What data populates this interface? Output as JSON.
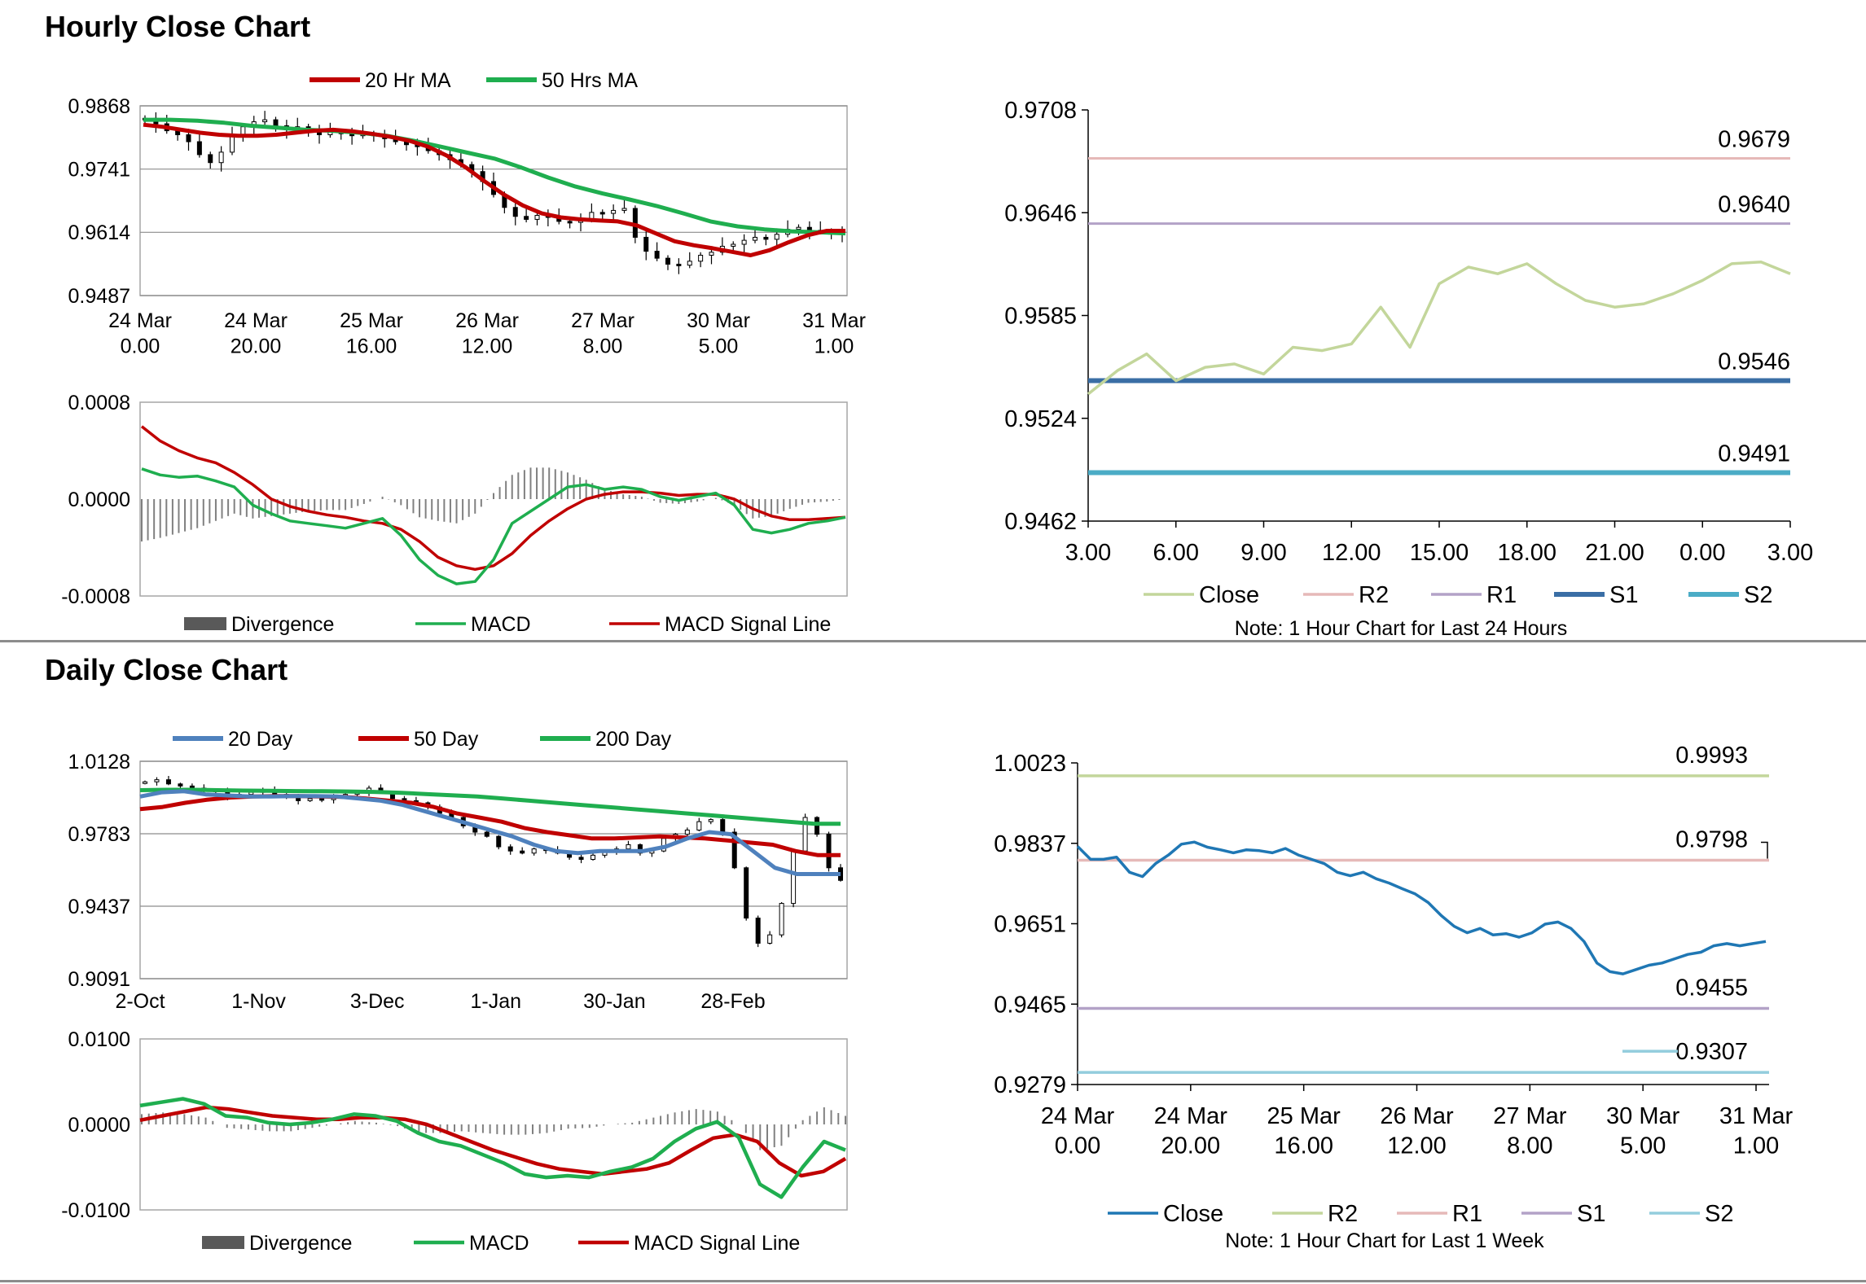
{
  "sections": {
    "hourly_title": "Hourly Close Chart",
    "daily_title": "Daily Close Chart"
  },
  "colors": {
    "ma20": "#c00000",
    "ma50": "#1fae4f",
    "macd": "#1fae4f",
    "signal": "#c00000",
    "divergence": "#808080",
    "day20": "#4f81bd",
    "day50": "#c00000",
    "day200": "#1fae4f",
    "close_green": "#c3d69b",
    "r2_pink": "#e6b9b8",
    "r1_purple": "#b3a2c7",
    "s1_blue": "#3a6ea5",
    "s2_teal": "#4bacc6",
    "close_blue": "#1f77b4",
    "r2_green": "#c3d69b",
    "s2_lightblue": "#93cddd"
  },
  "chart_data": [
    {
      "id": "hourly_price",
      "type": "line",
      "title": "Hourly Close Chart",
      "legend": [
        "20 Hr MA",
        "50 Hrs MA"
      ],
      "legend_placement": "top-center",
      "y_ticks": [
        "0.9868",
        "0.9741",
        "0.9614",
        "0.9487"
      ],
      "ylim": [
        0.9487,
        0.9868
      ],
      "x_ticks": [
        [
          "24 Mar",
          "0.00"
        ],
        [
          "24 Mar",
          "20.00"
        ],
        [
          "25 Mar",
          "16.00"
        ],
        [
          "26 Mar",
          "12.00"
        ],
        [
          "27 Mar",
          "8.00"
        ],
        [
          "30 Mar",
          "5.00"
        ],
        [
          "31 Mar",
          "1.00"
        ]
      ],
      "close": [
        0.9843,
        0.9832,
        0.9818,
        0.981,
        0.9796,
        0.977,
        0.9754,
        0.9775,
        0.9808,
        0.9826,
        0.9836,
        0.984,
        0.9828,
        0.982,
        0.9826,
        0.9818,
        0.981,
        0.9816,
        0.9812,
        0.9808,
        0.9812,
        0.9808,
        0.9802,
        0.9796,
        0.979,
        0.9786,
        0.9778,
        0.977,
        0.976,
        0.975,
        0.9736,
        0.9716,
        0.969,
        0.9664,
        0.9646,
        0.964,
        0.9648,
        0.9644,
        0.9636,
        0.9634,
        0.964,
        0.9654,
        0.9652,
        0.9658,
        0.9662,
        0.9604,
        0.9576,
        0.9562,
        0.955,
        0.9548,
        0.9556,
        0.9568,
        0.9574,
        0.9586,
        0.959,
        0.9598,
        0.9604,
        0.96,
        0.961,
        0.962,
        0.9624,
        0.9618,
        0.9616,
        0.9612,
        0.9614
      ],
      "series": [
        {
          "name": "20 Hr MA",
          "values": [
            0.983,
            0.9826,
            0.982,
            0.9814,
            0.981,
            0.9808,
            0.9808,
            0.981,
            0.9814,
            0.9818,
            0.982,
            0.9817,
            0.9812,
            0.9806,
            0.9798,
            0.9786,
            0.9768,
            0.9744,
            0.9716,
            0.969,
            0.9668,
            0.9652,
            0.9644,
            0.964,
            0.9638,
            0.9636,
            0.9628,
            0.9612,
            0.9596,
            0.9588,
            0.9582,
            0.9575,
            0.9568,
            0.9578,
            0.9594,
            0.9608,
            0.9617,
            0.9617
          ]
        },
        {
          "name": "50 Hrs MA",
          "values": [
            0.984,
            0.984,
            0.9838,
            0.9834,
            0.9828,
            0.9824,
            0.982,
            0.9818,
            0.9814,
            0.9808,
            0.9798,
            0.9786,
            0.9774,
            0.9762,
            0.9744,
            0.9724,
            0.9706,
            0.9692,
            0.968,
            0.9667,
            0.9652,
            0.9636,
            0.9626,
            0.962,
            0.9616,
            0.9614,
            0.9612
          ]
        }
      ]
    },
    {
      "id": "hourly_macd",
      "type": "line",
      "y_ticks": [
        "0.0008",
        "0.0000",
        "-0.0008"
      ],
      "ylim": [
        -0.0008,
        0.0008
      ],
      "legend": [
        "Divergence",
        "MACD",
        "MACD Signal Line"
      ],
      "legend_placement": "bottom",
      "series": [
        {
          "name": "MACD",
          "values": [
            0.00025,
            0.0002,
            0.00018,
            0.00019,
            0.00015,
            0.0001,
            -5e-05,
            -0.00012,
            -0.00018,
            -0.0002,
            -0.00022,
            -0.00024,
            -0.0002,
            -0.00016,
            -0.0003,
            -0.0005,
            -0.00063,
            -0.0007,
            -0.00068,
            -0.0005,
            -0.0002,
            -0.0001,
            0.0,
            0.0001,
            0.00012,
            8e-05,
            0.0001,
            8e-05,
            2e-05,
            -1e-05,
            2e-05,
            5e-05,
            -5e-05,
            -0.00025,
            -0.00028,
            -0.00025,
            -0.0002,
            -0.00018,
            -0.00015
          ]
        },
        {
          "name": "MACD Signal Line",
          "values": [
            0.0006,
            0.00048,
            0.0004,
            0.00034,
            0.0003,
            0.00022,
            0.00012,
            0.0,
            -6e-05,
            -0.0001,
            -0.00013,
            -0.00015,
            -0.00018,
            -0.0002,
            -0.00025,
            -0.00035,
            -0.00048,
            -0.00055,
            -0.00058,
            -0.00055,
            -0.00045,
            -0.0003,
            -0.00018,
            -8e-05,
            0.0,
            4e-05,
            6e-05,
            6e-05,
            5e-05,
            3e-05,
            4e-05,
            4e-05,
            0.0,
            -8e-05,
            -0.00014,
            -0.00017,
            -0.00017,
            -0.00016,
            -0.00015
          ]
        },
        {
          "name": "Divergence",
          "values": [
            -0.00035,
            -0.00032,
            -0.00028,
            -0.00024,
            -0.00018,
            -0.00012,
            -0.00016,
            -0.00014,
            -0.00012,
            -0.0001,
            -9e-05,
            -9e-05,
            -4e-05,
            2e-05,
            -5e-05,
            -0.00015,
            -0.00018,
            -0.0002,
            -0.00012,
            5e-05,
            0.0002,
            0.00026,
            0.00026,
            0.00022,
            0.00016,
            8e-05,
            4e-05,
            2e-05,
            -3e-05,
            -4e-05,
            -2e-05,
            1e-05,
            -5e-05,
            -0.00016,
            -0.00014,
            -8e-05,
            -3e-05,
            -2e-05,
            0.0
          ]
        }
      ]
    },
    {
      "id": "hourly_pivots",
      "type": "line",
      "note": "Note: 1 Hour Chart for Last 24 Hours",
      "y_ticks": [
        "0.9708",
        "0.9646",
        "0.9585",
        "0.9524",
        "0.9462"
      ],
      "ylim": [
        0.9462,
        0.9708
      ],
      "x_ticks": [
        "3.00",
        "6.00",
        "9.00",
        "12.00",
        "15.00",
        "18.00",
        "21.00",
        "0.00",
        "3.00"
      ],
      "legend": [
        "Close",
        "R2",
        "R1",
        "S1",
        "S2"
      ],
      "legend_placement": "bottom",
      "close": [
        0.9538,
        0.9552,
        0.9562,
        0.9546,
        0.9554,
        0.9556,
        0.955,
        0.9566,
        0.9564,
        0.9568,
        0.959,
        0.9566,
        0.9604,
        0.9614,
        0.961,
        0.9616,
        0.9604,
        0.9594,
        0.959,
        0.9592,
        0.9598,
        0.9606,
        0.9616,
        0.9617,
        0.961
      ],
      "levels": [
        {
          "name": "R2",
          "value": 0.9679,
          "label": "0.9679"
        },
        {
          "name": "R1",
          "value": 0.964,
          "label": "0.9640"
        },
        {
          "name": "S1",
          "value": 0.9546,
          "label": "0.9546"
        },
        {
          "name": "S2",
          "value": 0.9491,
          "label": "0.9491"
        }
      ]
    },
    {
      "id": "daily_price",
      "type": "line",
      "title": "Daily Close Chart",
      "legend": [
        "20 Day",
        "50 Day",
        "200 Day"
      ],
      "legend_placement": "top-center",
      "y_ticks": [
        "1.0128",
        "0.9783",
        "0.9437",
        "0.9091"
      ],
      "ylim": [
        0.9091,
        1.0128
      ],
      "x_ticks": [
        "2-Oct",
        "1-Nov",
        "3-Dec",
        "1-Jan",
        "30-Jan",
        "28-Feb"
      ],
      "close": [
        1.003,
        1.004,
        1.002,
        1.001,
        1.0,
        0.9985,
        0.999,
        0.996,
        0.997,
        0.998,
        0.999,
        0.997,
        0.996,
        0.994,
        0.995,
        0.9945,
        0.996,
        0.997,
        0.998,
        1.0,
        0.998,
        0.995,
        0.994,
        0.993,
        0.991,
        0.988,
        0.986,
        0.982,
        0.979,
        0.977,
        0.972,
        0.97,
        0.969,
        0.971,
        0.9705,
        0.969,
        0.967,
        0.966,
        0.968,
        0.97,
        0.971,
        0.973,
        0.969,
        0.97,
        0.976,
        0.978,
        0.98,
        0.984,
        0.985,
        0.979,
        0.962,
        0.938,
        0.926,
        0.93,
        0.945,
        0.97,
        0.986,
        0.978,
        0.962,
        0.956
      ],
      "series": [
        {
          "name": "20 Day",
          "values": [
            0.996,
            0.998,
            0.9985,
            0.997,
            0.9965,
            0.996,
            0.996,
            0.9962,
            0.9962,
            0.996,
            0.995,
            0.994,
            0.992,
            0.989,
            0.986,
            0.983,
            0.98,
            0.977,
            0.973,
            0.97,
            0.969,
            0.97,
            0.97,
            0.97,
            0.972,
            0.976,
            0.979,
            0.978,
            0.97,
            0.962,
            0.959,
            0.959,
            0.959
          ]
        },
        {
          "name": "50 Day",
          "values": [
            0.99,
            0.991,
            0.993,
            0.9945,
            0.9955,
            0.996,
            0.9962,
            0.9962,
            0.996,
            0.9958,
            0.995,
            0.994,
            0.993,
            0.991,
            0.988,
            0.986,
            0.984,
            0.981,
            0.979,
            0.9775,
            0.976,
            0.976,
            0.9765,
            0.977,
            0.9765,
            0.976,
            0.975,
            0.974,
            0.973,
            0.97,
            0.968,
            0.968
          ]
        },
        {
          "name": "200 Day",
          "values": [
            0.999,
            0.9992,
            0.9992,
            0.999,
            0.9988,
            0.9987,
            0.9986,
            0.9985,
            0.9984,
            0.9982,
            0.9978,
            0.9972,
            0.9966,
            0.996,
            0.995,
            0.994,
            0.993,
            0.992,
            0.991,
            0.99,
            0.989,
            0.988,
            0.987,
            0.986,
            0.985,
            0.984,
            0.983,
            0.983
          ]
        }
      ]
    },
    {
      "id": "daily_macd",
      "type": "line",
      "y_ticks": [
        "0.0100",
        "0.0000",
        "-0.0100"
      ],
      "ylim": [
        -0.01,
        0.01
      ],
      "legend": [
        "Divergence",
        "MACD",
        "MACD Signal Line"
      ],
      "legend_placement": "bottom",
      "series": [
        {
          "name": "MACD",
          "values": [
            0.0022,
            0.0026,
            0.003,
            0.0024,
            0.001,
            0.0008,
            0.0002,
            0.0,
            0.0002,
            0.0006,
            0.0012,
            0.001,
            0.0004,
            -0.001,
            -0.002,
            -0.0025,
            -0.0035,
            -0.0045,
            -0.0058,
            -0.0062,
            -0.006,
            -0.0062,
            -0.0055,
            -0.005,
            -0.004,
            -0.002,
            -0.0005,
            0.0003,
            -0.0015,
            -0.007,
            -0.0085,
            -0.005,
            -0.002,
            -0.003
          ]
        },
        {
          "name": "MACD Signal Line",
          "values": [
            0.0005,
            0.001,
            0.0015,
            0.002,
            0.0018,
            0.0014,
            0.001,
            0.0008,
            0.0006,
            0.0006,
            0.0008,
            0.0008,
            0.0006,
            0.0,
            -0.001,
            -0.002,
            -0.003,
            -0.0038,
            -0.0046,
            -0.0052,
            -0.0055,
            -0.0058,
            -0.0055,
            -0.0052,
            -0.0045,
            -0.003,
            -0.0016,
            -0.0012,
            -0.002,
            -0.0045,
            -0.006,
            -0.0055,
            -0.004
          ]
        },
        {
          "name": "Divergence",
          "values": [
            0.0012,
            0.0014,
            0.0012,
            0.0008,
            -0.0004,
            -0.0006,
            -0.0008,
            -0.0008,
            -0.0004,
            0.0,
            0.0004,
            0.0002,
            -0.0002,
            -0.001,
            -0.001,
            -0.0008,
            -0.001,
            -0.0012,
            -0.0012,
            -0.001,
            -0.0005,
            -0.0004,
            0.0,
            0.0002,
            0.0008,
            0.0014,
            0.0018,
            0.0015,
            0.0,
            -0.003,
            -0.0025,
            0.0005,
            0.002,
            0.001
          ]
        }
      ]
    },
    {
      "id": "weekly_pivots",
      "type": "line",
      "note": "Note: 1 Hour Chart for Last 1 Week",
      "y_ticks": [
        "1.0023",
        "0.9837",
        "0.9651",
        "0.9465",
        "0.9279"
      ],
      "ylim": [
        0.9279,
        1.0023
      ],
      "x_ticks": [
        [
          "24 Mar",
          "0.00"
        ],
        [
          "24 Mar",
          "20.00"
        ],
        [
          "25 Mar",
          "16.00"
        ],
        [
          "26 Mar",
          "12.00"
        ],
        [
          "27 Mar",
          "8.00"
        ],
        [
          "30 Mar",
          "5.00"
        ],
        [
          "31 Mar",
          "1.00"
        ]
      ],
      "legend": [
        "Close",
        "R2",
        "R1",
        "S1",
        "S2"
      ],
      "legend_placement": "bottom",
      "close": [
        0.983,
        0.98,
        0.98,
        0.9805,
        0.977,
        0.976,
        0.979,
        0.981,
        0.9835,
        0.984,
        0.9828,
        0.9822,
        0.9815,
        0.9822,
        0.982,
        0.9815,
        0.9825,
        0.981,
        0.98,
        0.979,
        0.977,
        0.9762,
        0.977,
        0.9755,
        0.9745,
        0.9732,
        0.972,
        0.97,
        0.967,
        0.9645,
        0.963,
        0.964,
        0.9625,
        0.9628,
        0.962,
        0.963,
        0.965,
        0.9655,
        0.964,
        0.961,
        0.956,
        0.954,
        0.9535,
        0.9545,
        0.9555,
        0.956,
        0.957,
        0.958,
        0.9585,
        0.96,
        0.9605,
        0.96,
        0.9605,
        0.961
      ],
      "levels": [
        {
          "name": "R2",
          "value": 0.9993,
          "label": "0.9993"
        },
        {
          "name": "R1",
          "value": 0.9798,
          "label": "0.9798"
        },
        {
          "name": "S1",
          "value": 0.9455,
          "label": "0.9455"
        },
        {
          "name": "S2",
          "value": 0.9307,
          "label": "0.9307"
        }
      ]
    }
  ]
}
